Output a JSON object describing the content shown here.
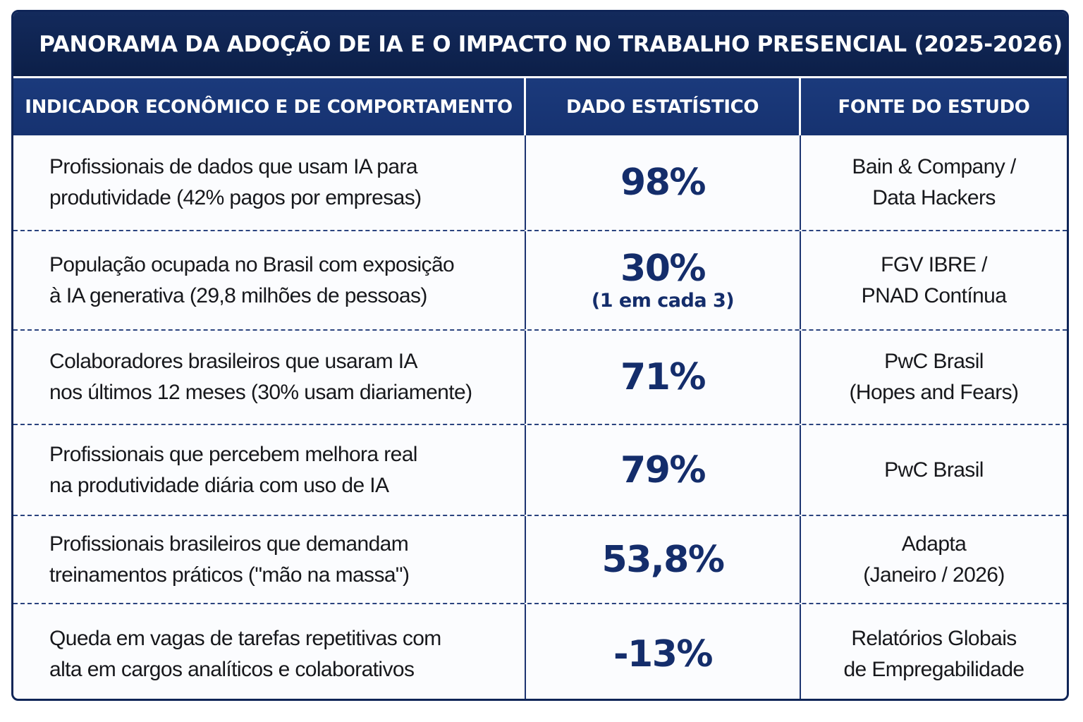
{
  "title": "PANORAMA DA ADOÇÃO DE IA E O IMPACTO NO TRABALHO PRESENCIAL (2025-2026)",
  "columns": [
    "INDICADOR ECONÔMICO E DE COMPORTAMENTO",
    "DADO ESTATÍSTICO",
    "FONTE DO ESTUDO"
  ],
  "rows": [
    {
      "indicator": [
        "Profissionais de dados que usam IA para",
        "produtividade (42% pagos por empresas)"
      ],
      "value": "98%",
      "note": "",
      "source": [
        "Bain & Company /",
        "Data Hackers"
      ]
    },
    {
      "indicator": [
        "População ocupada no Brasil com exposição",
        "à IA generativa (29,8 milhões de pessoas)"
      ],
      "value": "30%",
      "note": "(1 em cada 3)",
      "source": [
        "FGV IBRE /",
        "PNAD Contínua"
      ]
    },
    {
      "indicator": [
        "Colaboradores brasileiros que usaram IA",
        "nos últimos 12 meses (30% usam diariamente)"
      ],
      "value": "71%",
      "note": "",
      "source": [
        "PwC Brasil",
        "(Hopes and Fears)"
      ]
    },
    {
      "indicator": [
        "Profissionais que percebem melhora real",
        "na produtividade diária com uso de IA"
      ],
      "value": "79%",
      "note": "",
      "source": [
        "PwC Brasil",
        ""
      ]
    },
    {
      "indicator": [
        "Profissionais brasileiros que demandam",
        "treinamentos práticos (\"mão na massa\")"
      ],
      "value": "53,8%",
      "note": "",
      "source": [
        "Adapta",
        "(Janeiro / 2026)"
      ]
    },
    {
      "indicator": [
        "Queda em vagas de tarefas repetitivas com",
        "alta em cargos analíticos e colaborativos"
      ],
      "value": "-13%",
      "note": "",
      "source": [
        "Relatórios Globais",
        "de Empregabilidade"
      ]
    }
  ]
}
